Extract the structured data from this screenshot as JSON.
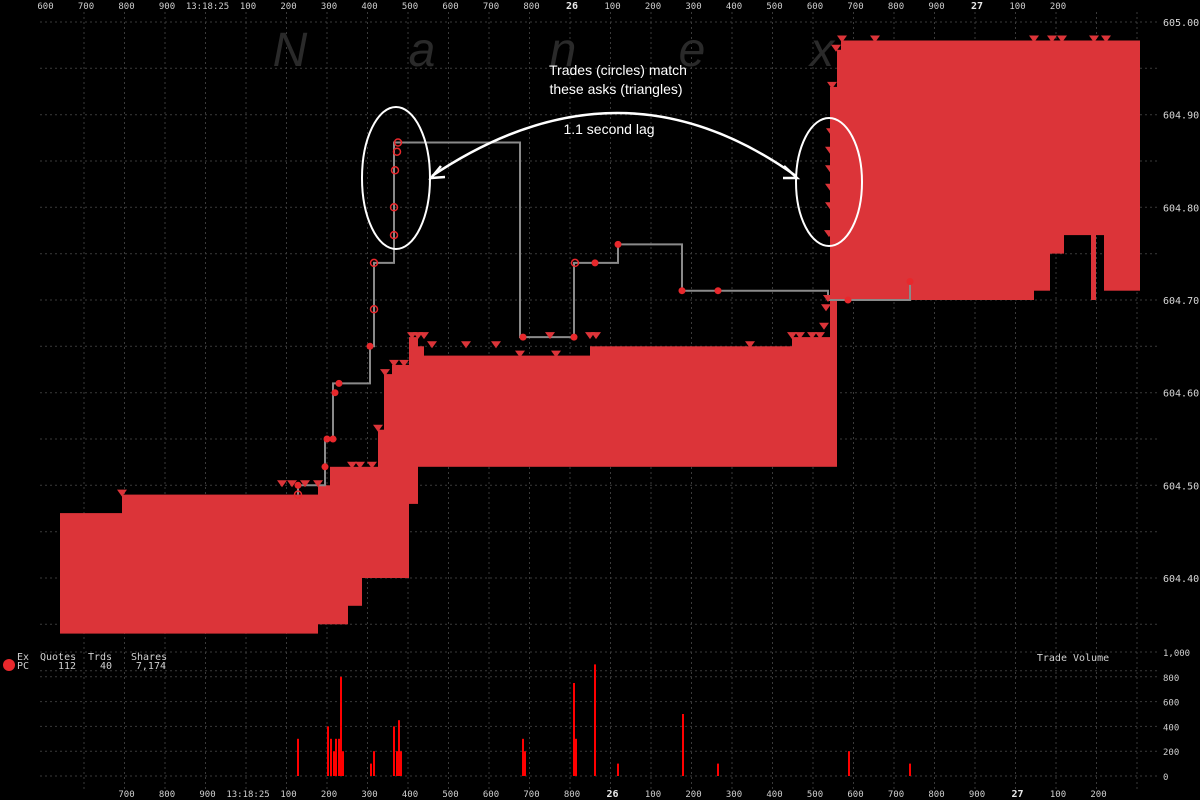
{
  "chart_data": [
    {
      "type": "area",
      "watermark": [
        "N",
        "a",
        "n",
        "e",
        "x"
      ],
      "ylim": [
        604.3,
        605.0
      ],
      "y_ticks": [
        "605.00",
        "604.90",
        "604.80",
        "604.70",
        "604.60",
        "604.50",
        "604.40"
      ],
      "x_ticks_top": [
        "600",
        "700",
        "800",
        "900",
        "13:18:25",
        "100",
        "200",
        "300",
        "400",
        "500",
        "600",
        "700",
        "800",
        "26",
        "100",
        "200",
        "300",
        "400",
        "500",
        "600",
        "700",
        "800",
        "900",
        "27",
        "100",
        "200"
      ],
      "x_ticks_bottom": [
        "700",
        "800",
        "900",
        "13:18:25",
        "100",
        "200",
        "300",
        "400",
        "500",
        "600",
        "700",
        "800",
        "26",
        "100",
        "200",
        "300",
        "400",
        "500",
        "600",
        "700",
        "800",
        "900",
        "27",
        "100",
        "200"
      ],
      "bid_ask_area": {
        "color": "#dc3439",
        "blocks": [
          {
            "from": 60,
            "to": 122,
            "high": 604.47,
            "low": 604.34
          },
          {
            "from": 122,
            "to": 318,
            "high": 604.49,
            "low": 604.34
          },
          {
            "from": 318,
            "to": 330,
            "high": 604.5,
            "low": 604.35
          },
          {
            "from": 330,
            "to": 348,
            "high": 604.52,
            "low": 604.35
          },
          {
            "from": 348,
            "to": 362,
            "high": 604.52,
            "low": 604.37
          },
          {
            "from": 362,
            "to": 378,
            "high": 604.52,
            "low": 604.4
          },
          {
            "from": 378,
            "to": 384,
            "high": 604.56,
            "low": 604.4
          },
          {
            "from": 384,
            "to": 392,
            "high": 604.62,
            "low": 604.4
          },
          {
            "from": 392,
            "to": 409,
            "high": 604.63,
            "low": 604.4
          },
          {
            "from": 409,
            "to": 418,
            "high": 604.66,
            "low": 604.48
          },
          {
            "from": 418,
            "to": 424,
            "high": 604.65,
            "low": 604.52
          },
          {
            "from": 424,
            "to": 590,
            "high": 604.64,
            "low": 604.52
          },
          {
            "from": 590,
            "to": 792,
            "high": 604.65,
            "low": 604.52
          },
          {
            "from": 792,
            "to": 830,
            "high": 604.66,
            "low": 604.52
          },
          {
            "from": 830,
            "to": 837,
            "high": 604.93,
            "low": 604.52
          },
          {
            "from": 837,
            "to": 841,
            "high": 604.97,
            "low": 604.7
          },
          {
            "from": 841,
            "to": 1034,
            "high": 604.98,
            "low": 604.7
          },
          {
            "from": 1034,
            "to": 1050,
            "high": 604.98,
            "low": 604.71
          },
          {
            "from": 1050,
            "to": 1064,
            "high": 604.98,
            "low": 604.75
          },
          {
            "from": 1064,
            "to": 1091,
            "high": 604.98,
            "low": 604.77
          },
          {
            "from": 1091,
            "to": 1096,
            "high": 604.98,
            "low": 604.7
          },
          {
            "from": 1096,
            "to": 1104,
            "high": 604.98,
            "low": 604.77
          },
          {
            "from": 1104,
            "to": 1140,
            "high": 604.98,
            "low": 604.71
          }
        ]
      },
      "asks": {
        "color": "#dc3439",
        "points": [
          {
            "x": 122,
            "y": 604.49
          },
          {
            "x": 282,
            "y": 604.5
          },
          {
            "x": 292,
            "y": 604.5
          },
          {
            "x": 305,
            "y": 604.5
          },
          {
            "x": 318,
            "y": 604.5
          },
          {
            "x": 352,
            "y": 604.52
          },
          {
            "x": 360,
            "y": 604.52
          },
          {
            "x": 372,
            "y": 604.52
          },
          {
            "x": 378,
            "y": 604.56
          },
          {
            "x": 385,
            "y": 604.62
          },
          {
            "x": 394,
            "y": 604.63
          },
          {
            "x": 404,
            "y": 604.63
          },
          {
            "x": 412,
            "y": 604.66
          },
          {
            "x": 418,
            "y": 604.66
          },
          {
            "x": 424,
            "y": 604.66
          },
          {
            "x": 432,
            "y": 604.65
          },
          {
            "x": 466,
            "y": 604.65
          },
          {
            "x": 496,
            "y": 604.65
          },
          {
            "x": 520,
            "y": 604.64
          },
          {
            "x": 550,
            "y": 604.66
          },
          {
            "x": 556,
            "y": 604.64
          },
          {
            "x": 590,
            "y": 604.66
          },
          {
            "x": 596,
            "y": 604.66
          },
          {
            "x": 750,
            "y": 604.65
          },
          {
            "x": 792,
            "y": 604.66
          },
          {
            "x": 800,
            "y": 604.66
          },
          {
            "x": 812,
            "y": 604.66
          },
          {
            "x": 820,
            "y": 604.66
          },
          {
            "x": 824,
            "y": 604.67
          },
          {
            "x": 826,
            "y": 604.69
          },
          {
            "x": 828,
            "y": 604.7
          },
          {
            "x": 829,
            "y": 604.77
          },
          {
            "x": 830,
            "y": 604.8
          },
          {
            "x": 830,
            "y": 604.82
          },
          {
            "x": 830,
            "y": 604.84
          },
          {
            "x": 830,
            "y": 604.86
          },
          {
            "x": 831,
            "y": 604.88
          },
          {
            "x": 832,
            "y": 604.93
          },
          {
            "x": 836,
            "y": 604.97
          },
          {
            "x": 842,
            "y": 604.98
          },
          {
            "x": 875,
            "y": 604.98
          },
          {
            "x": 1034,
            "y": 604.98
          },
          {
            "x": 1052,
            "y": 604.98
          },
          {
            "x": 1062,
            "y": 604.98
          },
          {
            "x": 1094,
            "y": 604.98
          },
          {
            "x": 1106,
            "y": 604.98
          }
        ]
      },
      "trades": {
        "color": "#e8282c",
        "line_color": "#8a8a8a",
        "points": [
          {
            "x": 298,
            "y": 604.49,
            "filled": false
          },
          {
            "x": 298,
            "y": 604.5,
            "filled": true
          },
          {
            "x": 325,
            "y": 604.52,
            "filled": true
          },
          {
            "x": 327,
            "y": 604.55,
            "filled": true
          },
          {
            "x": 333,
            "y": 604.55,
            "filled": true
          },
          {
            "x": 335,
            "y": 604.6,
            "filled": true
          },
          {
            "x": 339,
            "y": 604.61,
            "filled": true
          },
          {
            "x": 370,
            "y": 604.65,
            "filled": true
          },
          {
            "x": 374,
            "y": 604.69,
            "filled": false
          },
          {
            "x": 374,
            "y": 604.74,
            "filled": false
          },
          {
            "x": 394,
            "y": 604.77,
            "filled": false
          },
          {
            "x": 394,
            "y": 604.8,
            "filled": false
          },
          {
            "x": 395,
            "y": 604.84,
            "filled": false
          },
          {
            "x": 397,
            "y": 604.86,
            "filled": false
          },
          {
            "x": 398,
            "y": 604.87,
            "filled": false
          },
          {
            "x": 523,
            "y": 604.66,
            "filled": true
          },
          {
            "x": 574,
            "y": 604.66,
            "filled": true
          },
          {
            "x": 575,
            "y": 604.74,
            "filled": false
          },
          {
            "x": 595,
            "y": 604.74,
            "filled": true
          },
          {
            "x": 618,
            "y": 604.76,
            "filled": true
          },
          {
            "x": 682,
            "y": 604.71,
            "filled": true
          },
          {
            "x": 718,
            "y": 604.71,
            "filled": true
          },
          {
            "x": 848,
            "y": 604.7,
            "filled": true
          },
          {
            "x": 910,
            "y": 604.72,
            "filled": true
          }
        ],
        "path": [
          {
            "x": 298,
            "y": 604.49
          },
          {
            "x": 298,
            "y": 604.5
          },
          {
            "x": 325,
            "y": 604.5
          },
          {
            "x": 325,
            "y": 604.55
          },
          {
            "x": 333,
            "y": 604.55
          },
          {
            "x": 333,
            "y": 604.61
          },
          {
            "x": 370,
            "y": 604.61
          },
          {
            "x": 370,
            "y": 604.65
          },
          {
            "x": 374,
            "y": 604.65
          },
          {
            "x": 374,
            "y": 604.74
          },
          {
            "x": 394,
            "y": 604.74
          },
          {
            "x": 394,
            "y": 604.87
          },
          {
            "x": 520,
            "y": 604.87
          },
          {
            "x": 520,
            "y": 604.66
          },
          {
            "x": 574,
            "y": 604.66
          },
          {
            "x": 574,
            "y": 604.74
          },
          {
            "x": 618,
            "y": 604.74
          },
          {
            "x": 618,
            "y": 604.76
          },
          {
            "x": 682,
            "y": 604.76
          },
          {
            "x": 682,
            "y": 604.71
          },
          {
            "x": 828,
            "y": 604.71
          },
          {
            "x": 828,
            "y": 604.7
          },
          {
            "x": 910,
            "y": 604.7
          },
          {
            "x": 910,
            "y": 604.72
          }
        ]
      },
      "annotations": {
        "title_line1": "Trades (circles) match",
        "title_line2": "these asks (triangles)",
        "lag": "1.1 second lag"
      }
    },
    {
      "type": "bar",
      "title": "Trade Volume",
      "ylim": [
        0,
        1000
      ],
      "y_ticks": [
        "1,000",
        "800",
        "600",
        "400",
        "200",
        "0"
      ],
      "color": "#ff0000",
      "bars": [
        {
          "x": 298,
          "value": 300
        },
        {
          "x": 328,
          "value": 400
        },
        {
          "x": 331,
          "value": 300
        },
        {
          "x": 334,
          "value": 200
        },
        {
          "x": 336,
          "value": 300
        },
        {
          "x": 339,
          "value": 300
        },
        {
          "x": 341,
          "value": 800
        },
        {
          "x": 343,
          "value": 200
        },
        {
          "x": 371,
          "value": 100
        },
        {
          "x": 374,
          "value": 200
        },
        {
          "x": 394,
          "value": 400
        },
        {
          "x": 397,
          "value": 200
        },
        {
          "x": 399,
          "value": 450
        },
        {
          "x": 401,
          "value": 200
        },
        {
          "x": 523,
          "value": 300
        },
        {
          "x": 525,
          "value": 200
        },
        {
          "x": 574,
          "value": 750
        },
        {
          "x": 576,
          "value": 300
        },
        {
          "x": 595,
          "value": 900
        },
        {
          "x": 618,
          "value": 100
        },
        {
          "x": 683,
          "value": 500
        },
        {
          "x": 718,
          "value": 100
        },
        {
          "x": 849,
          "value": 200
        },
        {
          "x": 910,
          "value": 100
        }
      ],
      "legend": {
        "header": [
          "Ex",
          "Quotes",
          "Trds",
          "Shares"
        ],
        "row": {
          "exchange": "PC",
          "quotes": "112",
          "trades": "40",
          "shares": "7,174"
        }
      }
    }
  ]
}
